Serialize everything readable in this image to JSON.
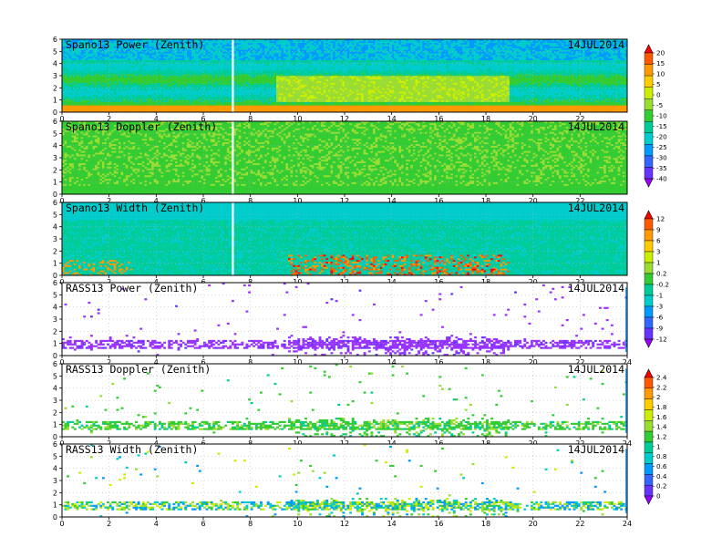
{
  "date": "14JUL2014",
  "chart_data": [
    {
      "type": "heatmap",
      "title": "Spano13 Power (Zenith)",
      "xlim": [
        0,
        24
      ],
      "ylim": [
        0,
        6
      ],
      "x_ticks": [
        "0",
        "2",
        "4",
        "6",
        "8",
        "10",
        "12",
        "14",
        "16",
        "18",
        "20",
        "22"
      ],
      "y_ticks": [
        "0",
        "1",
        "2",
        "3",
        "4",
        "5",
        "6"
      ],
      "grid": true,
      "colorbar_group": "power_doppler"
    },
    {
      "type": "heatmap",
      "title": "Spano13 Doppler (Zenith)",
      "xlim": [
        0,
        24
      ],
      "ylim": [
        0,
        6
      ],
      "x_ticks": [
        "0",
        "2",
        "4",
        "6",
        "8",
        "10",
        "12",
        "14",
        "16",
        "18",
        "20",
        "22"
      ],
      "y_ticks": [
        "0",
        "1",
        "2",
        "3",
        "4",
        "5",
        "6"
      ],
      "grid": true,
      "colorbar_group": "power_doppler"
    },
    {
      "type": "heatmap",
      "title": "Spano13 Width (Zenith)",
      "xlim": [
        0,
        24
      ],
      "ylim": [
        0,
        6
      ],
      "x_ticks": [
        "0",
        "2",
        "4",
        "6",
        "8",
        "10",
        "12",
        "14",
        "16",
        "18",
        "20",
        "22"
      ],
      "y_ticks": [
        "0",
        "1",
        "2",
        "3",
        "4",
        "5",
        "6"
      ],
      "grid": true,
      "colorbar_group": "width"
    },
    {
      "type": "heatmap",
      "title": "RASS13 Power (Zenith)",
      "xlim": [
        0,
        24
      ],
      "ylim": [
        0,
        6
      ],
      "x_ticks": [
        "0",
        "2",
        "4",
        "6",
        "8",
        "10",
        "12",
        "14",
        "16",
        "18",
        "20",
        "22",
        "24"
      ],
      "y_ticks": [
        "0",
        "1",
        "2",
        "3",
        "4",
        "5",
        "6"
      ],
      "grid": true,
      "colorbar_group": "width"
    },
    {
      "type": "heatmap",
      "title": "RASS13 Doppler (Zenith)",
      "xlim": [
        0,
        24
      ],
      "ylim": [
        0,
        6
      ],
      "x_ticks": [
        "0",
        "2",
        "4",
        "6",
        "8",
        "10",
        "12",
        "14",
        "16",
        "18",
        "20",
        "22",
        "24"
      ],
      "y_ticks": [
        "0",
        "1",
        "2",
        "3",
        "4",
        "5",
        "6"
      ],
      "grid": true,
      "colorbar_group": "rass"
    },
    {
      "type": "heatmap",
      "title": "RASS13 Width (Zenith)",
      "xlim": [
        0,
        24
      ],
      "ylim": [
        0,
        6
      ],
      "x_ticks": [
        "0",
        "2",
        "4",
        "6",
        "8",
        "10",
        "12",
        "14",
        "16",
        "18",
        "20",
        "22",
        "24"
      ],
      "y_ticks": [
        "0",
        "1",
        "2",
        "3",
        "4",
        "5",
        "6"
      ],
      "grid": true,
      "colorbar_group": "rass"
    }
  ],
  "colorbars": [
    {
      "name": "power_doppler",
      "labels": [
        "20",
        "15",
        "10",
        "5",
        "0",
        "-5",
        "-10",
        "-15",
        "-20",
        "-25",
        "-30",
        "-35",
        "-40"
      ],
      "colors": [
        "#ff0000",
        "#ff5a00",
        "#ff9900",
        "#ffcc00",
        "#ccee00",
        "#99dd33",
        "#33cc33",
        "#00cc99",
        "#00cccc",
        "#0099ff",
        "#3366ff",
        "#6633ff",
        "#9900ff"
      ]
    },
    {
      "name": "width",
      "labels": [
        "12",
        "9",
        "6",
        "3",
        "1",
        "0.2",
        "-0.2",
        "-1",
        "-3",
        "-6",
        "-9",
        "-12"
      ],
      "colors": [
        "#ff0000",
        "#ff5a00",
        "#ff9900",
        "#ffcc00",
        "#ccee00",
        "#99dd33",
        "#33cc33",
        "#00cc99",
        "#00cccc",
        "#0099ff",
        "#3366ff",
        "#6633ff",
        "#9900ff"
      ]
    },
    {
      "name": "rass",
      "labels": [
        "2.4",
        "2.2",
        "2",
        "1.8",
        "1.6",
        "1.4",
        "1.2",
        "1",
        "0.8",
        "0.6",
        "0.4",
        "0.2",
        "0"
      ],
      "colors": [
        "#ff0000",
        "#ff5a00",
        "#ff9900",
        "#ffcc00",
        "#ccee00",
        "#99dd33",
        "#33cc33",
        "#00cc99",
        "#00cccc",
        "#0099ff",
        "#3366ff",
        "#6633ff",
        "#9900ff"
      ]
    }
  ]
}
